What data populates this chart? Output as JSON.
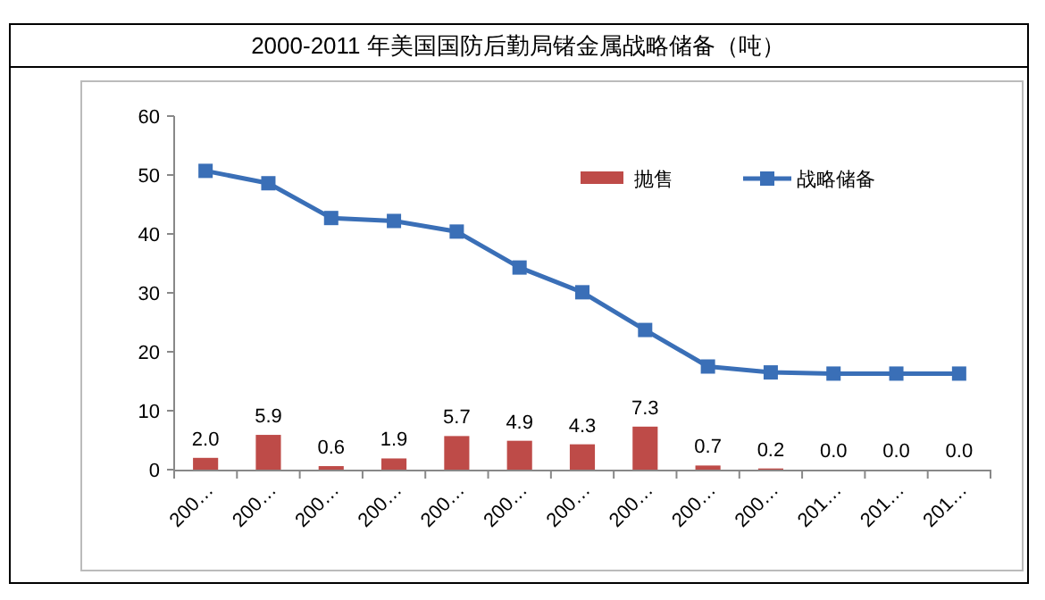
{
  "chart_data": {
    "type": "bar",
    "title": "2000-2011 年美国国防后勤局锗金属战略储备（吨）",
    "categories": [
      "200…",
      "200…",
      "200…",
      "200…",
      "200…",
      "200…",
      "200…",
      "200…",
      "200…",
      "200…",
      "201…",
      "201…",
      "201…"
    ],
    "series": [
      {
        "name": "抛售",
        "color": "#be4b48",
        "values": [
          2.0,
          5.9,
          0.6,
          1.9,
          5.7,
          4.9,
          4.3,
          7.3,
          0.7,
          0.2,
          0.0,
          0.0,
          0.0
        ],
        "value_labels": [
          "2.0",
          "5.9",
          "0.6",
          "1.9",
          "5.7",
          "4.9",
          "4.3",
          "7.3",
          "0.7",
          "0.2",
          "0.0",
          "0.0",
          "0.0"
        ]
      },
      {
        "name": "战略储备",
        "type": "line",
        "color": "#3a6fb7",
        "marker": "square",
        "values": [
          50.7,
          48.6,
          42.7,
          42.2,
          40.4,
          34.3,
          30.1,
          23.7,
          17.5,
          16.5,
          16.3,
          16.3,
          16.3
        ]
      }
    ],
    "ylim": [
      0,
      60
    ],
    "yticks": [
      0,
      10,
      20,
      30,
      40,
      50,
      60
    ],
    "legend": "top right"
  }
}
